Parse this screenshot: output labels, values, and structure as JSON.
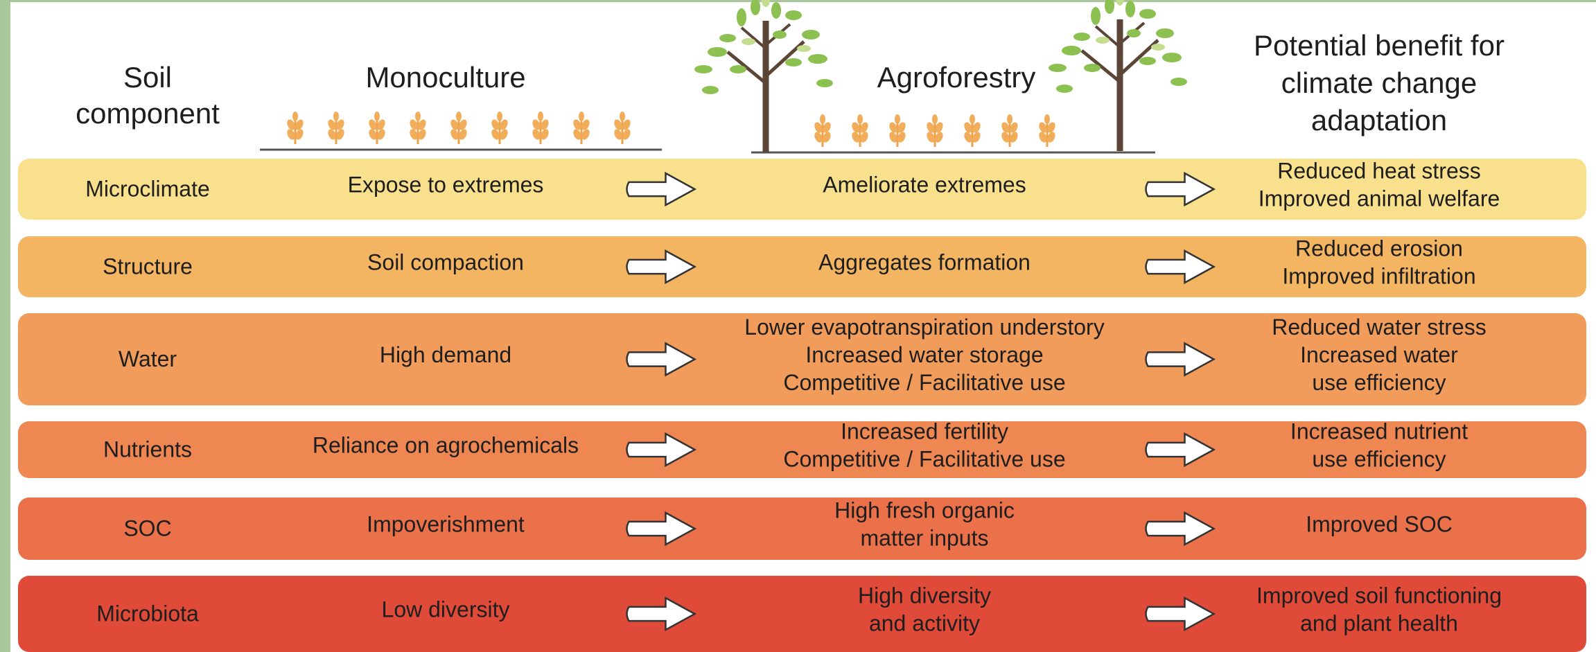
{
  "header": {
    "soil_component": [
      "Soil",
      "component"
    ],
    "monoculture": [
      "Monoculture"
    ],
    "agroforestry": [
      "Agroforestry"
    ],
    "benefit": [
      "Potential benefit for",
      "climate change",
      "adaptation"
    ]
  },
  "rows": [
    {
      "component": [
        "Microclimate"
      ],
      "monoculture": [
        "Expose to extremes"
      ],
      "agroforestry": [
        "Ameliorate extremes"
      ],
      "benefit": [
        "Reduced heat stress",
        "Improved animal welfare"
      ]
    },
    {
      "component": [
        "Structure"
      ],
      "monoculture": [
        "Soil compaction"
      ],
      "agroforestry": [
        "Aggregates formation"
      ],
      "benefit": [
        "Reduced erosion",
        "Improved infiltration"
      ]
    },
    {
      "component": [
        "Water"
      ],
      "monoculture": [
        "High demand"
      ],
      "agroforestry": [
        "Lower evapotranspiration understory",
        "Increased water storage",
        "Competitive / Facilitative use"
      ],
      "benefit": [
        "Reduced water stress",
        "Increased water",
        "use efficiency"
      ]
    },
    {
      "component": [
        "Nutrients"
      ],
      "monoculture": [
        "Reliance on agrochemicals"
      ],
      "agroforestry": [
        "Increased fertility",
        "Competitive / Facilitative use"
      ],
      "benefit": [
        "Increased nutrient",
        "use efficiency"
      ]
    },
    {
      "component": [
        "SOC"
      ],
      "monoculture": [
        "Impoverishment"
      ],
      "agroforestry": [
        "High fresh organic",
        "matter inputs"
      ],
      "benefit": [
        "Improved SOC"
      ]
    },
    {
      "component": [
        "Microbiota"
      ],
      "monoculture": [
        "Low diversity"
      ],
      "agroforestry": [
        "High diversity",
        "and activity"
      ],
      "benefit": [
        "Improved soil functioning",
        "and plant health"
      ]
    }
  ]
}
